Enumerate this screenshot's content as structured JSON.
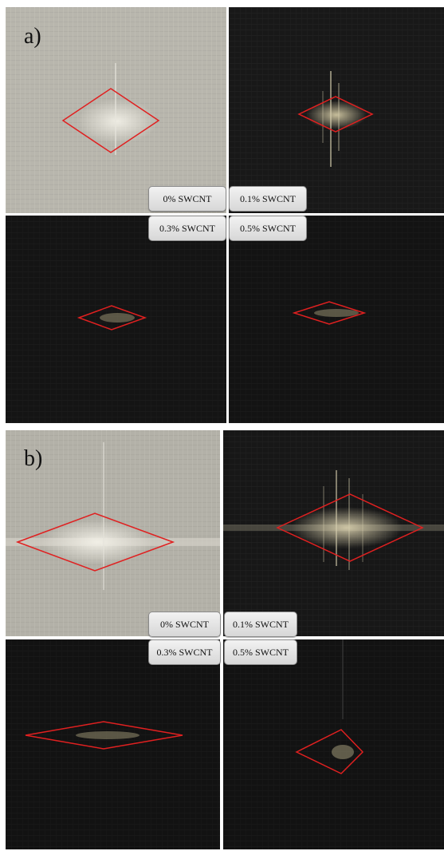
{
  "panels": [
    {
      "letter": "a)",
      "tags": [
        "0% SWCNT",
        "0.1% SWCNT",
        "0.3% SWCNT",
        "0.5% SWCNT"
      ]
    },
    {
      "letter": "b)",
      "tags": [
        "0% SWCNT",
        "0.1% SWCNT",
        "0.3% SWCNT",
        "0.5% SWCNT"
      ]
    }
  ],
  "colors": {
    "outline": "#e02020",
    "plain_laminate": "#b4b2a8",
    "cnt_laminate": "#151515",
    "background": "#ffffff"
  }
}
